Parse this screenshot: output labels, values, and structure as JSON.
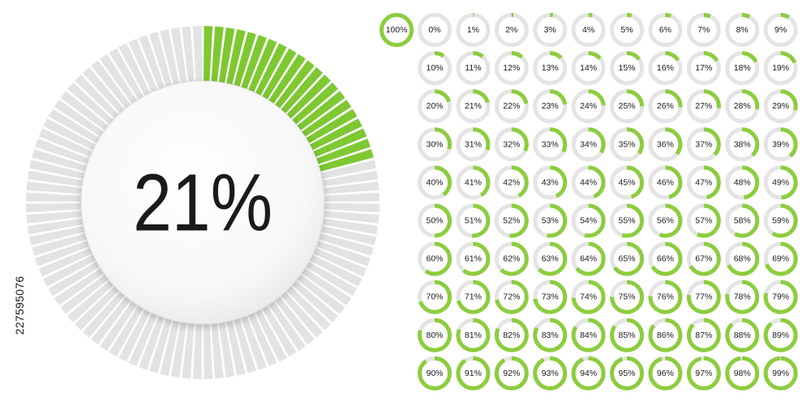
{
  "main_gauge": {
    "label": "21%",
    "value": 21,
    "segments": 100,
    "colors": {
      "fill": "#7ec832",
      "track": "#e3e3e3",
      "text": "#1a1a1a"
    }
  },
  "gauge_grid": {
    "items": [
      "100%",
      "0%",
      "1%",
      "2%",
      "3%",
      "4%",
      "5%",
      "6%",
      "7%",
      "8%",
      "9%",
      "10%",
      "11%",
      "12%",
      "13%",
      "14%",
      "15%",
      "16%",
      "17%",
      "18%",
      "19%",
      "20%",
      "21%",
      "22%",
      "23%",
      "24%",
      "25%",
      "26%",
      "27%",
      "28%",
      "29%",
      "30%",
      "31%",
      "32%",
      "33%",
      "34%",
      "35%",
      "36%",
      "37%",
      "38%",
      "39%",
      "40%",
      "41%",
      "42%",
      "43%",
      "44%",
      "45%",
      "46%",
      "47%",
      "48%",
      "49%",
      "50%",
      "51%",
      "52%",
      "53%",
      "54%",
      "55%",
      "56%",
      "57%",
      "58%",
      "59%",
      "60%",
      "61%",
      "62%",
      "63%",
      "64%",
      "65%",
      "66%",
      "67%",
      "68%",
      "69%",
      "70%",
      "71%",
      "72%",
      "73%",
      "74%",
      "75%",
      "76%",
      "77%",
      "78%",
      "79%",
      "80%",
      "81%",
      "82%",
      "83%",
      "84%",
      "85%",
      "86%",
      "87%",
      "88%",
      "89%",
      "90%",
      "91%",
      "92%",
      "93%",
      "94%",
      "95%",
      "96%",
      "97%",
      "98%",
      "99%"
    ],
    "colors": {
      "fill": "#8ccd3e",
      "track": "#e4e4e4",
      "text": "#1a1a1a"
    }
  },
  "stock_id": "227595076"
}
